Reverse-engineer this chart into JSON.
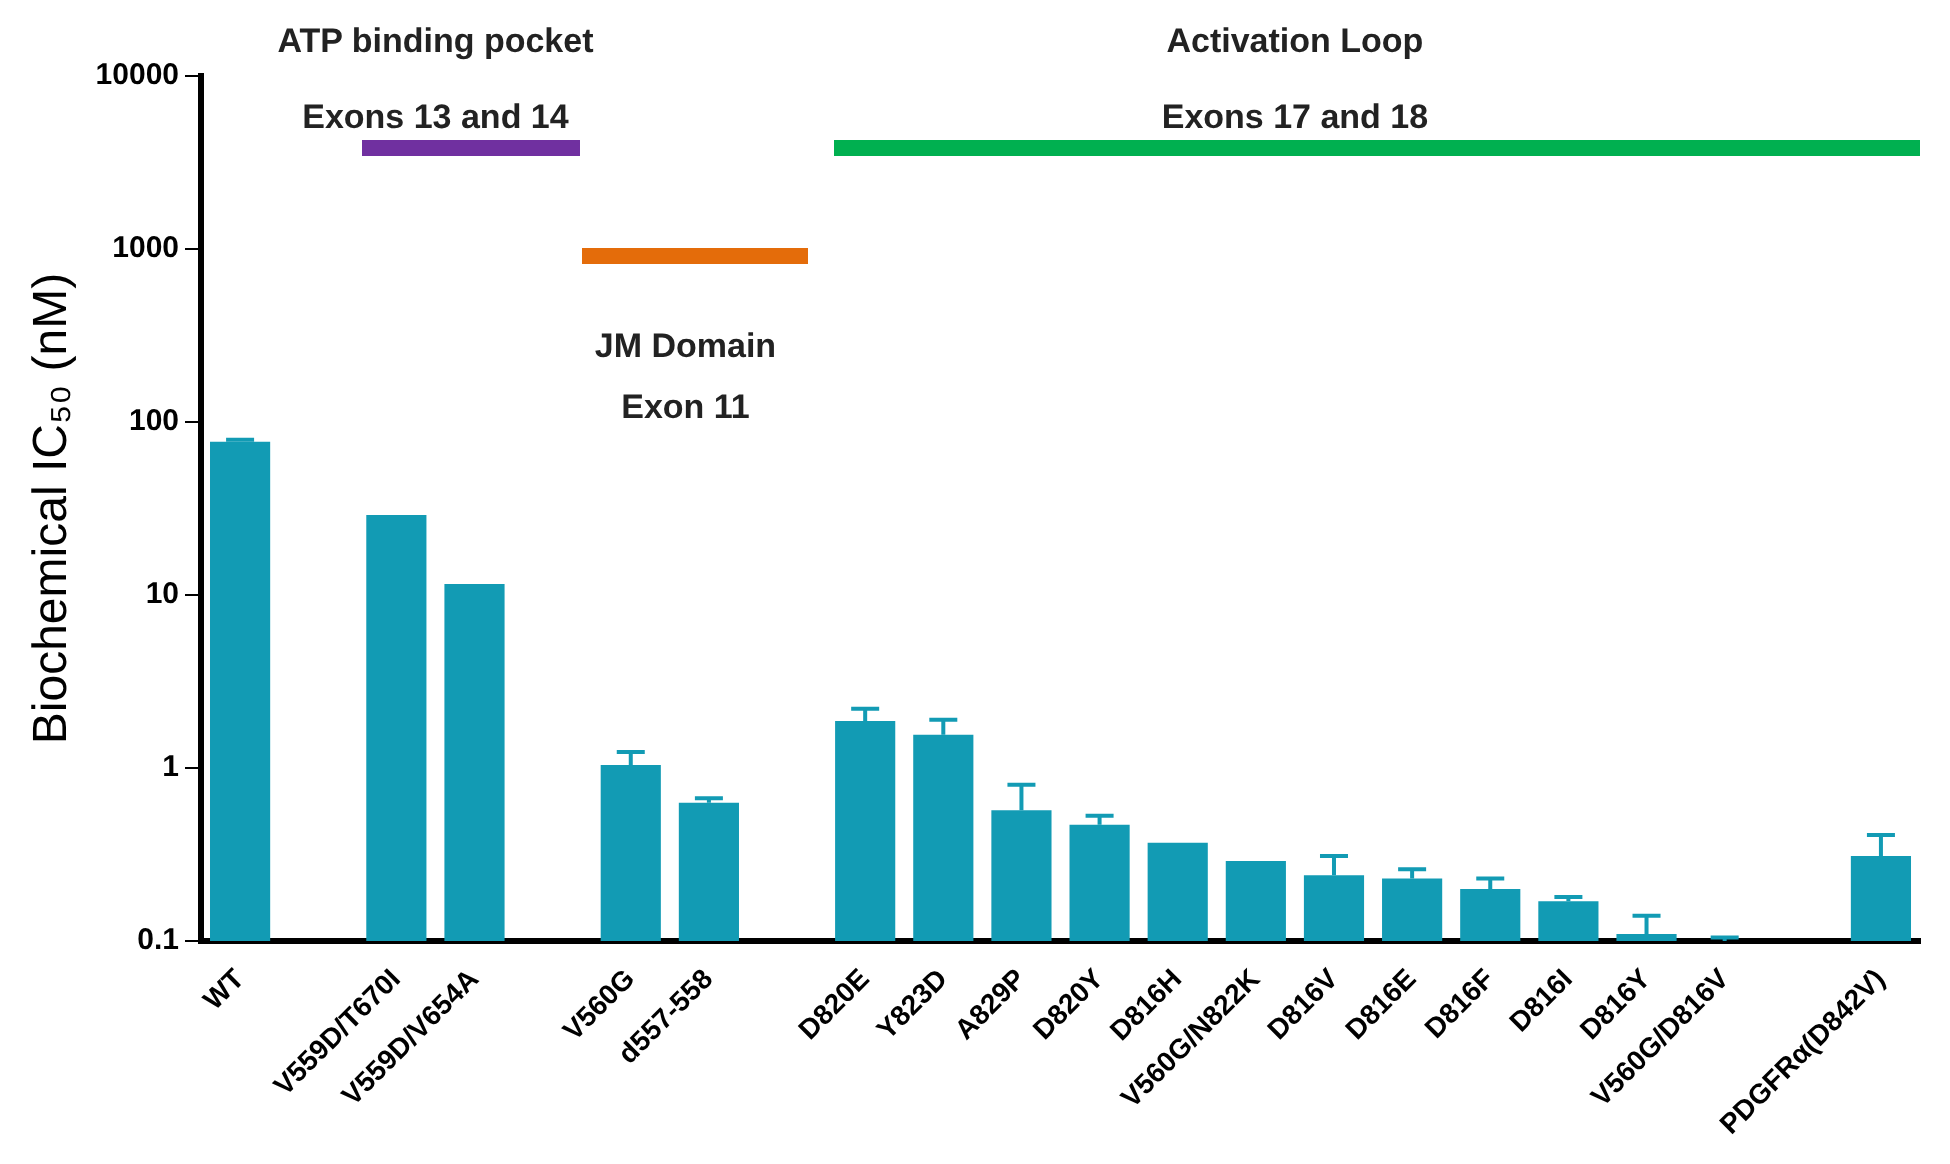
{
  "chart_data": {
    "type": "bar",
    "ylabel": "Biochemical IC₅₀ (nM)",
    "categories": [
      "WT",
      null,
      "V559D/T670I",
      "V559D/V654A",
      null,
      "V560G",
      "d557-558",
      null,
      "D820E",
      "Y823D",
      "A829P",
      "D820Y",
      "D816H",
      "V560G/N822K",
      "D816V",
      "D816E",
      "D816F",
      "D816I",
      "D816Y",
      "V560G/D816V",
      null,
      "PDGFRα(D842V)"
    ],
    "values": [
      77,
      null,
      29,
      11.6,
      null,
      1.04,
      0.63,
      null,
      1.87,
      1.56,
      0.57,
      0.47,
      0.37,
      0.29,
      0.24,
      0.23,
      0.2,
      0.17,
      0.11,
      0.1,
      null,
      0.31
    ],
    "errors": [
      [
        77,
        79
      ],
      null,
      null,
      null,
      null,
      [
        1.04,
        1.24
      ],
      [
        0.63,
        0.67
      ],
      null,
      [
        1.87,
        2.2
      ],
      [
        1.56,
        1.9
      ],
      [
        0.57,
        0.8
      ],
      [
        0.47,
        0.53
      ],
      null,
      null,
      [
        0.24,
        0.31
      ],
      [
        0.23,
        0.26
      ],
      [
        0.2,
        0.23
      ],
      [
        0.17,
        0.18
      ],
      [
        0.11,
        0.14
      ],
      [
        0.1,
        0.105
      ],
      null,
      [
        0.31,
        0.41
      ]
    ],
    "color": "#129bb4",
    "log": true,
    "ylim": [
      0.1,
      10000
    ],
    "yticks": [
      0.1,
      1,
      10,
      100,
      1000,
      10000
    ],
    "grid": false,
    "legend": false,
    "annotations": [
      "ATP binding pocket",
      "Exons 13 and 14",
      "JM Domain",
      "Exon 11",
      "Activation Loop",
      "Exons 17 and 18"
    ]
  }
}
